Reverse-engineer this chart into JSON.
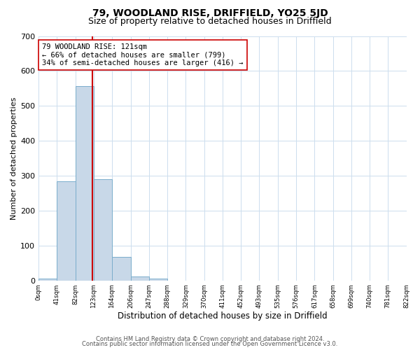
{
  "title": "79, WOODLAND RISE, DRIFFIELD, YO25 5JD",
  "subtitle": "Size of property relative to detached houses in Driffield",
  "xlabel": "Distribution of detached houses by size in Driffield",
  "ylabel": "Number of detached properties",
  "bin_edges": [
    0,
    41,
    82,
    123,
    164,
    206,
    247,
    288,
    329,
    370,
    411,
    452,
    493,
    535,
    576,
    617,
    658,
    699,
    740,
    781,
    822
  ],
  "bar_heights": [
    5,
    283,
    557,
    290,
    68,
    12,
    5,
    0,
    0,
    0,
    0,
    0,
    0,
    0,
    0,
    0,
    0,
    0,
    0,
    0
  ],
  "bar_color": "#c8d8e8",
  "bar_edge_color": "#7aadcc",
  "ylim": [
    0,
    700
  ],
  "yticks": [
    0,
    100,
    200,
    300,
    400,
    500,
    600,
    700
  ],
  "property_value": 121,
  "vline_color": "#cc0000",
  "annotation_line1": "79 WOODLAND RISE: 121sqm",
  "annotation_line2": "← 66% of detached houses are smaller (799)",
  "annotation_line3": "34% of semi-detached houses are larger (416) →",
  "annotation_box_color": "#ffffff",
  "annotation_box_edge_color": "#cc0000",
  "footnote1": "Contains HM Land Registry data © Crown copyright and database right 2024.",
  "footnote2": "Contains public sector information licensed under the Open Government Licence v3.0.",
  "bg_color": "#ffffff",
  "grid_color": "#ccddee",
  "title_fontsize": 10,
  "subtitle_fontsize": 9,
  "tick_labels": [
    "0sqm",
    "41sqm",
    "82sqm",
    "123sqm",
    "164sqm",
    "206sqm",
    "247sqm",
    "288sqm",
    "329sqm",
    "370sqm",
    "411sqm",
    "452sqm",
    "493sqm",
    "535sqm",
    "576sqm",
    "617sqm",
    "658sqm",
    "699sqm",
    "740sqm",
    "781sqm",
    "822sqm"
  ]
}
